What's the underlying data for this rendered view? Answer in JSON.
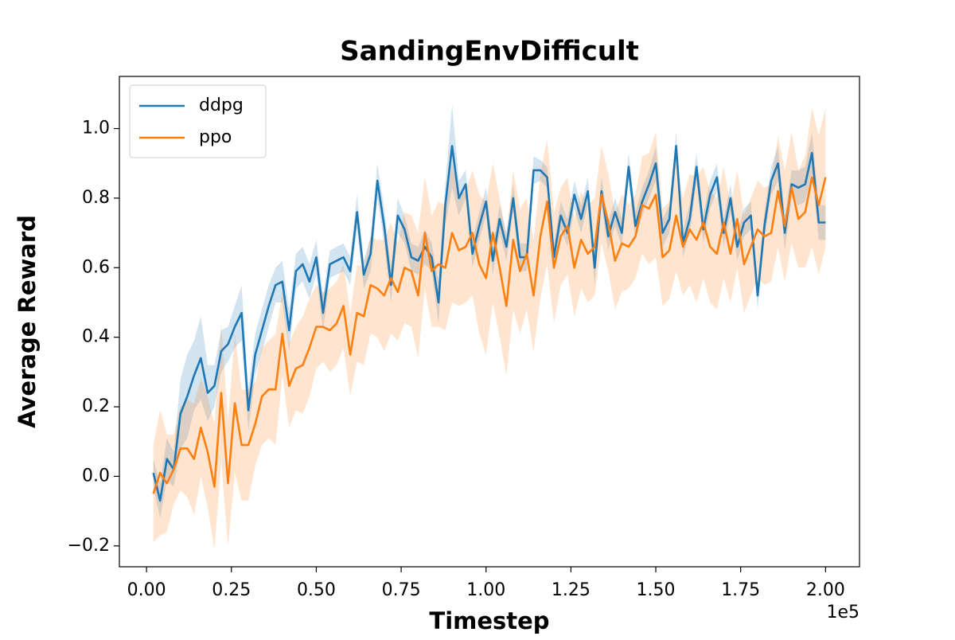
{
  "chart_data": {
    "type": "line",
    "title": "SandingEnvDifficult",
    "xlabel": "Timestep",
    "ylabel": "Average Reward",
    "x_offset_label": "1e5",
    "x": [
      0.02,
      0.04,
      0.06,
      0.08,
      0.1,
      0.12,
      0.14,
      0.16,
      0.18,
      0.2,
      0.22,
      0.24,
      0.26,
      0.28,
      0.3,
      0.32,
      0.34,
      0.36,
      0.38,
      0.4,
      0.42,
      0.44,
      0.46,
      0.48,
      0.5,
      0.52,
      0.54,
      0.56,
      0.58,
      0.6,
      0.62,
      0.64,
      0.66,
      0.68,
      0.7,
      0.72,
      0.74,
      0.76,
      0.78,
      0.8,
      0.82,
      0.84,
      0.86,
      0.88,
      0.9,
      0.92,
      0.94,
      0.96,
      0.98,
      1.0,
      1.02,
      1.04,
      1.06,
      1.08,
      1.1,
      1.12,
      1.14,
      1.16,
      1.18,
      1.2,
      1.22,
      1.24,
      1.26,
      1.28,
      1.3,
      1.32,
      1.34,
      1.36,
      1.38,
      1.4,
      1.42,
      1.44,
      1.46,
      1.48,
      1.5,
      1.52,
      1.54,
      1.56,
      1.58,
      1.6,
      1.62,
      1.64,
      1.66,
      1.68,
      1.7,
      1.72,
      1.74,
      1.76,
      1.78,
      1.8,
      1.82,
      1.84,
      1.86,
      1.88,
      1.9,
      1.92,
      1.94,
      1.96,
      1.98,
      2.0
    ],
    "series": [
      {
        "name": "ddpg",
        "color": "#1f77b4",
        "values": [
          0.01,
          -0.07,
          0.05,
          0.02,
          0.18,
          0.23,
          0.29,
          0.34,
          0.24,
          0.26,
          0.36,
          0.38,
          0.43,
          0.47,
          0.19,
          0.35,
          0.42,
          0.49,
          0.55,
          0.56,
          0.42,
          0.59,
          0.61,
          0.56,
          0.63,
          0.47,
          0.61,
          0.62,
          0.63,
          0.59,
          0.76,
          0.58,
          0.64,
          0.85,
          0.72,
          0.55,
          0.75,
          0.71,
          0.63,
          0.62,
          0.66,
          0.63,
          0.5,
          0.78,
          0.95,
          0.8,
          0.84,
          0.64,
          0.72,
          0.79,
          0.62,
          0.74,
          0.66,
          0.8,
          0.63,
          0.63,
          0.88,
          0.88,
          0.86,
          0.63,
          0.75,
          0.7,
          0.81,
          0.74,
          0.82,
          0.6,
          0.82,
          0.69,
          0.76,
          0.7,
          0.89,
          0.72,
          0.79,
          0.84,
          0.9,
          0.7,
          0.74,
          0.95,
          0.67,
          0.74,
          0.89,
          0.71,
          0.81,
          0.86,
          0.7,
          0.8,
          0.66,
          0.73,
          0.75,
          0.52,
          0.72,
          0.85,
          0.9,
          0.7,
          0.84,
          0.83,
          0.84,
          0.93,
          0.73,
          0.73
        ],
        "band": [
          0.04,
          0.05,
          0.06,
          0.05,
          0.1,
          0.12,
          0.1,
          0.12,
          0.08,
          0.06,
          0.06,
          0.05,
          0.06,
          0.08,
          0.06,
          0.06,
          0.06,
          0.06,
          0.05,
          0.06,
          0.06,
          0.05,
          0.05,
          0.05,
          0.05,
          0.05,
          0.04,
          0.04,
          0.04,
          0.04,
          0.05,
          0.04,
          0.05,
          0.05,
          0.05,
          0.05,
          0.05,
          0.04,
          0.04,
          0.04,
          0.05,
          0.04,
          0.06,
          0.06,
          0.12,
          0.05,
          0.04,
          0.04,
          0.04,
          0.04,
          0.04,
          0.04,
          0.04,
          0.04,
          0.04,
          0.04,
          0.04,
          0.03,
          0.03,
          0.04,
          0.04,
          0.04,
          0.04,
          0.04,
          0.04,
          0.05,
          0.04,
          0.04,
          0.04,
          0.04,
          0.04,
          0.04,
          0.04,
          0.04,
          0.05,
          0.04,
          0.04,
          0.04,
          0.04,
          0.04,
          0.04,
          0.04,
          0.04,
          0.04,
          0.04,
          0.04,
          0.04,
          0.04,
          0.04,
          0.04,
          0.04,
          0.04,
          0.05,
          0.05,
          0.04,
          0.05,
          0.05,
          0.06,
          0.05,
          0.05
        ]
      },
      {
        "name": "ppo",
        "color": "#ff7f0e",
        "values": [
          -0.05,
          0.01,
          -0.02,
          0.02,
          0.08,
          0.08,
          0.05,
          0.14,
          0.07,
          -0.03,
          0.24,
          -0.02,
          0.21,
          0.09,
          0.09,
          0.15,
          0.23,
          0.25,
          0.25,
          0.41,
          0.26,
          0.31,
          0.32,
          0.37,
          0.43,
          0.43,
          0.42,
          0.44,
          0.49,
          0.35,
          0.47,
          0.46,
          0.55,
          0.54,
          0.52,
          0.57,
          0.53,
          0.6,
          0.59,
          0.52,
          0.7,
          0.59,
          0.61,
          0.6,
          0.7,
          0.65,
          0.66,
          0.7,
          0.61,
          0.57,
          0.7,
          0.6,
          0.49,
          0.68,
          0.59,
          0.64,
          0.52,
          0.69,
          0.79,
          0.6,
          0.69,
          0.72,
          0.6,
          0.68,
          0.64,
          0.66,
          0.81,
          0.73,
          0.62,
          0.67,
          0.66,
          0.69,
          0.78,
          0.77,
          0.81,
          0.63,
          0.65,
          0.75,
          0.66,
          0.71,
          0.68,
          0.73,
          0.66,
          0.64,
          0.73,
          0.64,
          0.74,
          0.61,
          0.66,
          0.71,
          0.69,
          0.7,
          0.82,
          0.72,
          0.83,
          0.74,
          0.76,
          0.86,
          0.78,
          0.86
        ],
        "band": [
          0.14,
          0.18,
          0.14,
          0.1,
          0.12,
          0.14,
          0.16,
          0.14,
          0.16,
          0.18,
          0.2,
          0.18,
          0.2,
          0.16,
          0.16,
          0.12,
          0.14,
          0.14,
          0.16,
          0.12,
          0.12,
          0.12,
          0.14,
          0.14,
          0.12,
          0.1,
          0.12,
          0.12,
          0.12,
          0.12,
          0.14,
          0.14,
          0.14,
          0.14,
          0.16,
          0.16,
          0.14,
          0.16,
          0.16,
          0.18,
          0.16,
          0.16,
          0.18,
          0.18,
          0.2,
          0.16,
          0.16,
          0.18,
          0.2,
          0.22,
          0.2,
          0.2,
          0.2,
          0.2,
          0.18,
          0.16,
          0.16,
          0.18,
          0.18,
          0.16,
          0.14,
          0.14,
          0.14,
          0.14,
          0.14,
          0.14,
          0.14,
          0.14,
          0.14,
          0.14,
          0.12,
          0.12,
          0.14,
          0.16,
          0.18,
          0.14,
          0.14,
          0.16,
          0.14,
          0.16,
          0.18,
          0.16,
          0.16,
          0.16,
          0.16,
          0.14,
          0.14,
          0.14,
          0.14,
          0.14,
          0.14,
          0.14,
          0.16,
          0.16,
          0.16,
          0.14,
          0.16,
          0.2,
          0.2,
          0.2
        ]
      }
    ],
    "xlim": [
      -0.08,
      2.1
    ],
    "ylim": [
      -0.26,
      1.15
    ],
    "xticks": [
      {
        "value": 0,
        "label": "0.00"
      },
      {
        "value": 0.25,
        "label": "0.25"
      },
      {
        "value": 0.5,
        "label": "0.50"
      },
      {
        "value": 0.75,
        "label": "0.75"
      },
      {
        "value": 1,
        "label": "1.00"
      },
      {
        "value": 1.25,
        "label": "1.25"
      },
      {
        "value": 1.5,
        "label": "1.50"
      },
      {
        "value": 1.75,
        "label": "1.75"
      },
      {
        "value": 2,
        "label": "2.00"
      }
    ],
    "yticks": [
      {
        "value": -0.2,
        "label": "−0.2"
      },
      {
        "value": 0,
        "label": "0.0"
      },
      0.2,
      0.4,
      0.6,
      0.8,
      {
        "value": 1,
        "label": "1.0"
      }
    ],
    "legend": "upper left",
    "grid": false
  }
}
